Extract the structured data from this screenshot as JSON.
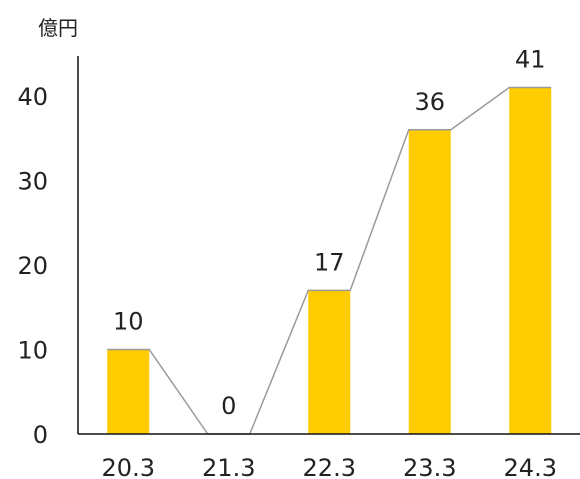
{
  "chart_data": {
    "type": "bar",
    "unit_label": "億円",
    "categories": [
      "20.3",
      "21.3",
      "22.3",
      "23.3",
      "24.3"
    ],
    "values": [
      10,
      0,
      17,
      36,
      41
    ],
    "data_labels": [
      "10",
      "0",
      "17",
      "36",
      "41"
    ],
    "yticks": [
      "0",
      "10",
      "20",
      "30",
      "40"
    ],
    "ylim": [
      0,
      45
    ],
    "grid": false,
    "trend_line": true,
    "colors": {
      "bar": "#FFCC00",
      "trend_line": "#9A9A9A",
      "axis": "#111111"
    }
  }
}
